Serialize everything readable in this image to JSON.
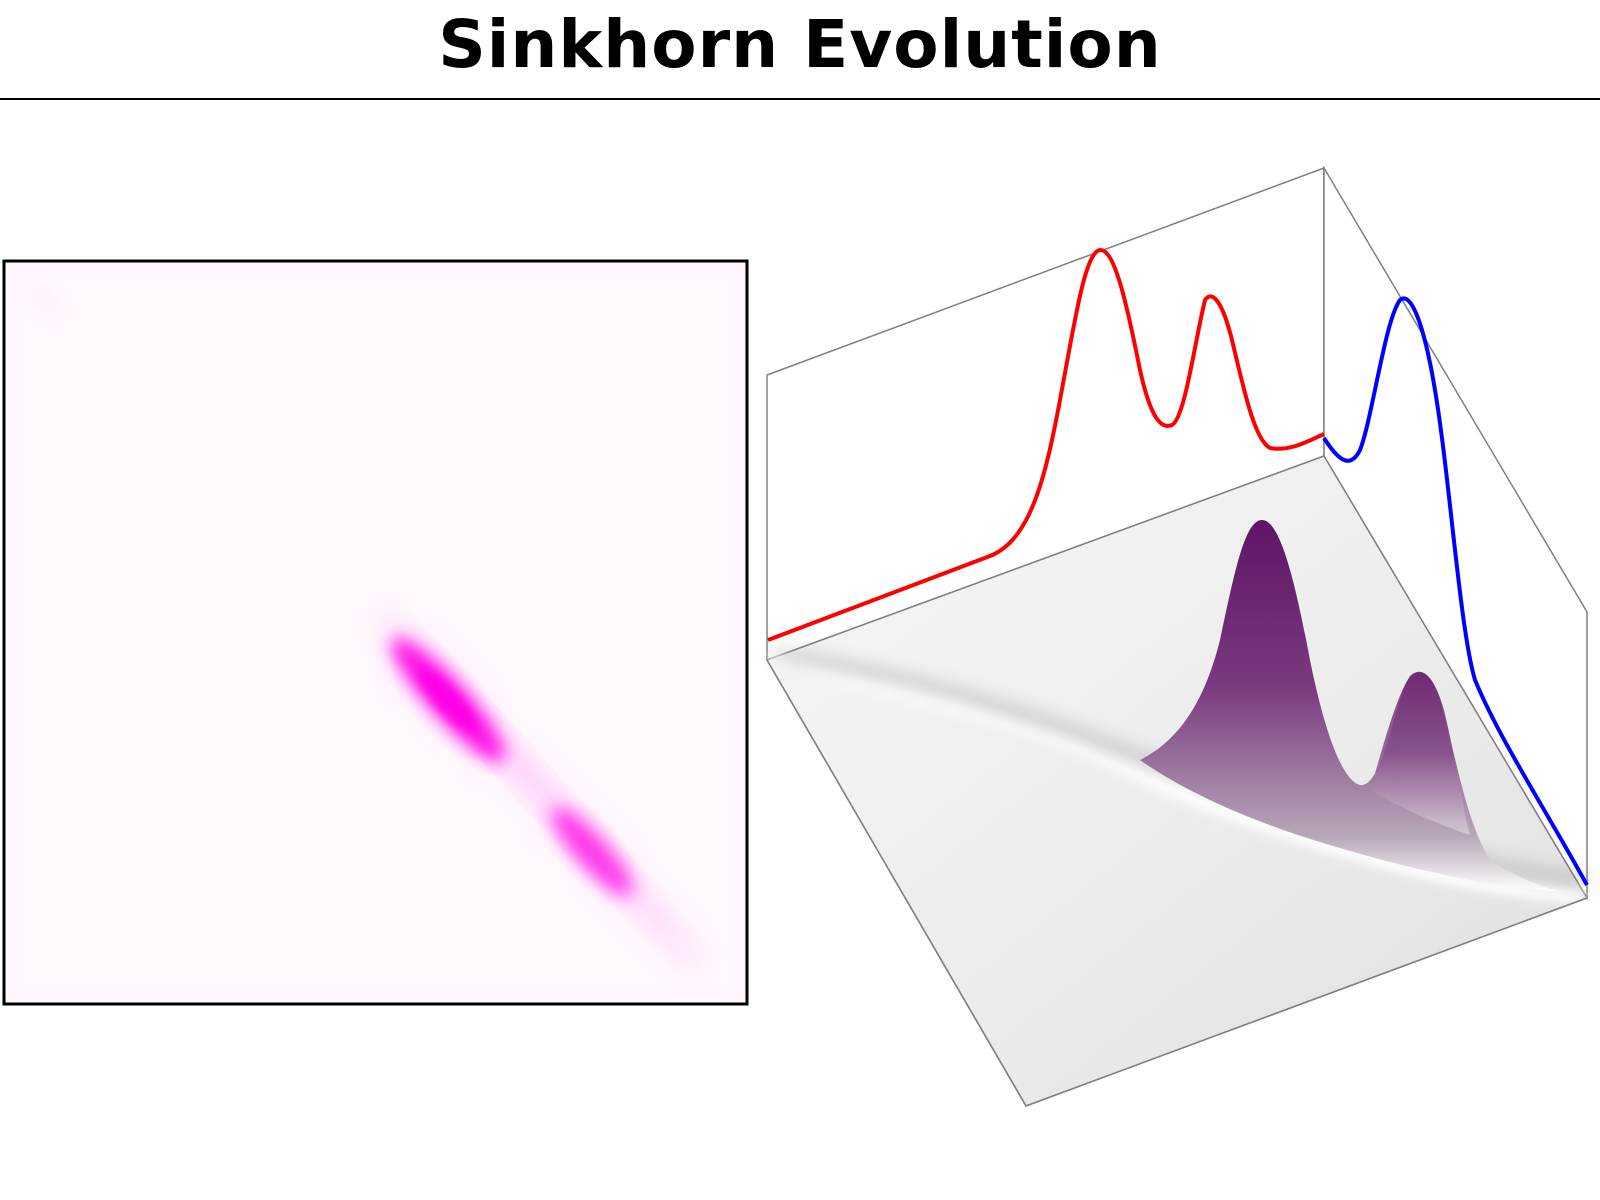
{
  "header": {
    "title": "Sinkhorn Evolution"
  },
  "figure": {
    "heatmap_color": "#ff00e6",
    "heatmap_background": "#fff7fd",
    "source_marginal_color": "#ff0000",
    "target_marginal_color": "#0000ff",
    "surface_color": "#6a1e70",
    "floor_color": "#e9e9e9"
  }
}
